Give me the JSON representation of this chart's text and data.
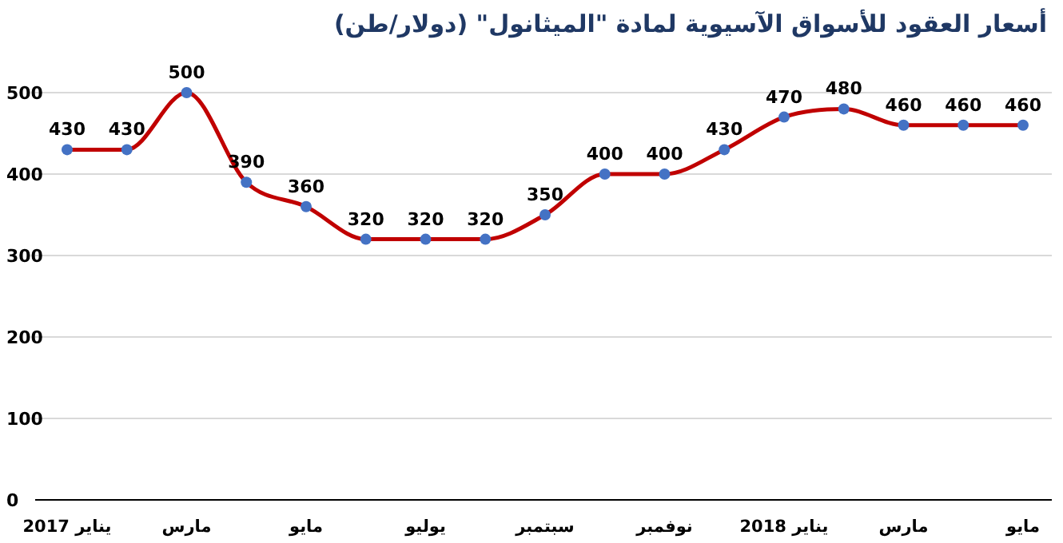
{
  "chart_data": {
    "type": "line",
    "title": "أسعار العقود للأسواق الآسيوية لمادة \"الميثانول\" (دولار/طن)",
    "categories": [
      "يناير 2017",
      null,
      "مارس",
      null,
      "مايو",
      null,
      "يوليو",
      null,
      "سبتمبر",
      null,
      "نوفمبر",
      null,
      "يناير 2018",
      null,
      "مارس",
      null,
      "مايو"
    ],
    "series": [
      {
        "color": "#c00000",
        "colors": [
          "#4472c4",
          "#4472c4",
          "#4472c4",
          "#4472c4",
          "#4472c4",
          "#4472c4",
          "#4472c4",
          "#4472c4",
          "#4472c4",
          "#4472c4",
          "#4472c4",
          "#4472c4",
          "#4472c4",
          "#4472c4",
          "#4472c4",
          "#4472c4",
          "#4472c4"
        ],
        "values": [
          430,
          430,
          500,
          390,
          360,
          320,
          320,
          320,
          350,
          400,
          400,
          430,
          470,
          480,
          460,
          460,
          460
        ]
      }
    ],
    "ylim": [
      0,
      500
    ],
    "yticks": [
      0,
      100,
      200,
      300,
      400,
      500
    ],
    "grid": "y",
    "marker": "circle",
    "line_style": "solid",
    "data_labels": true
  }
}
